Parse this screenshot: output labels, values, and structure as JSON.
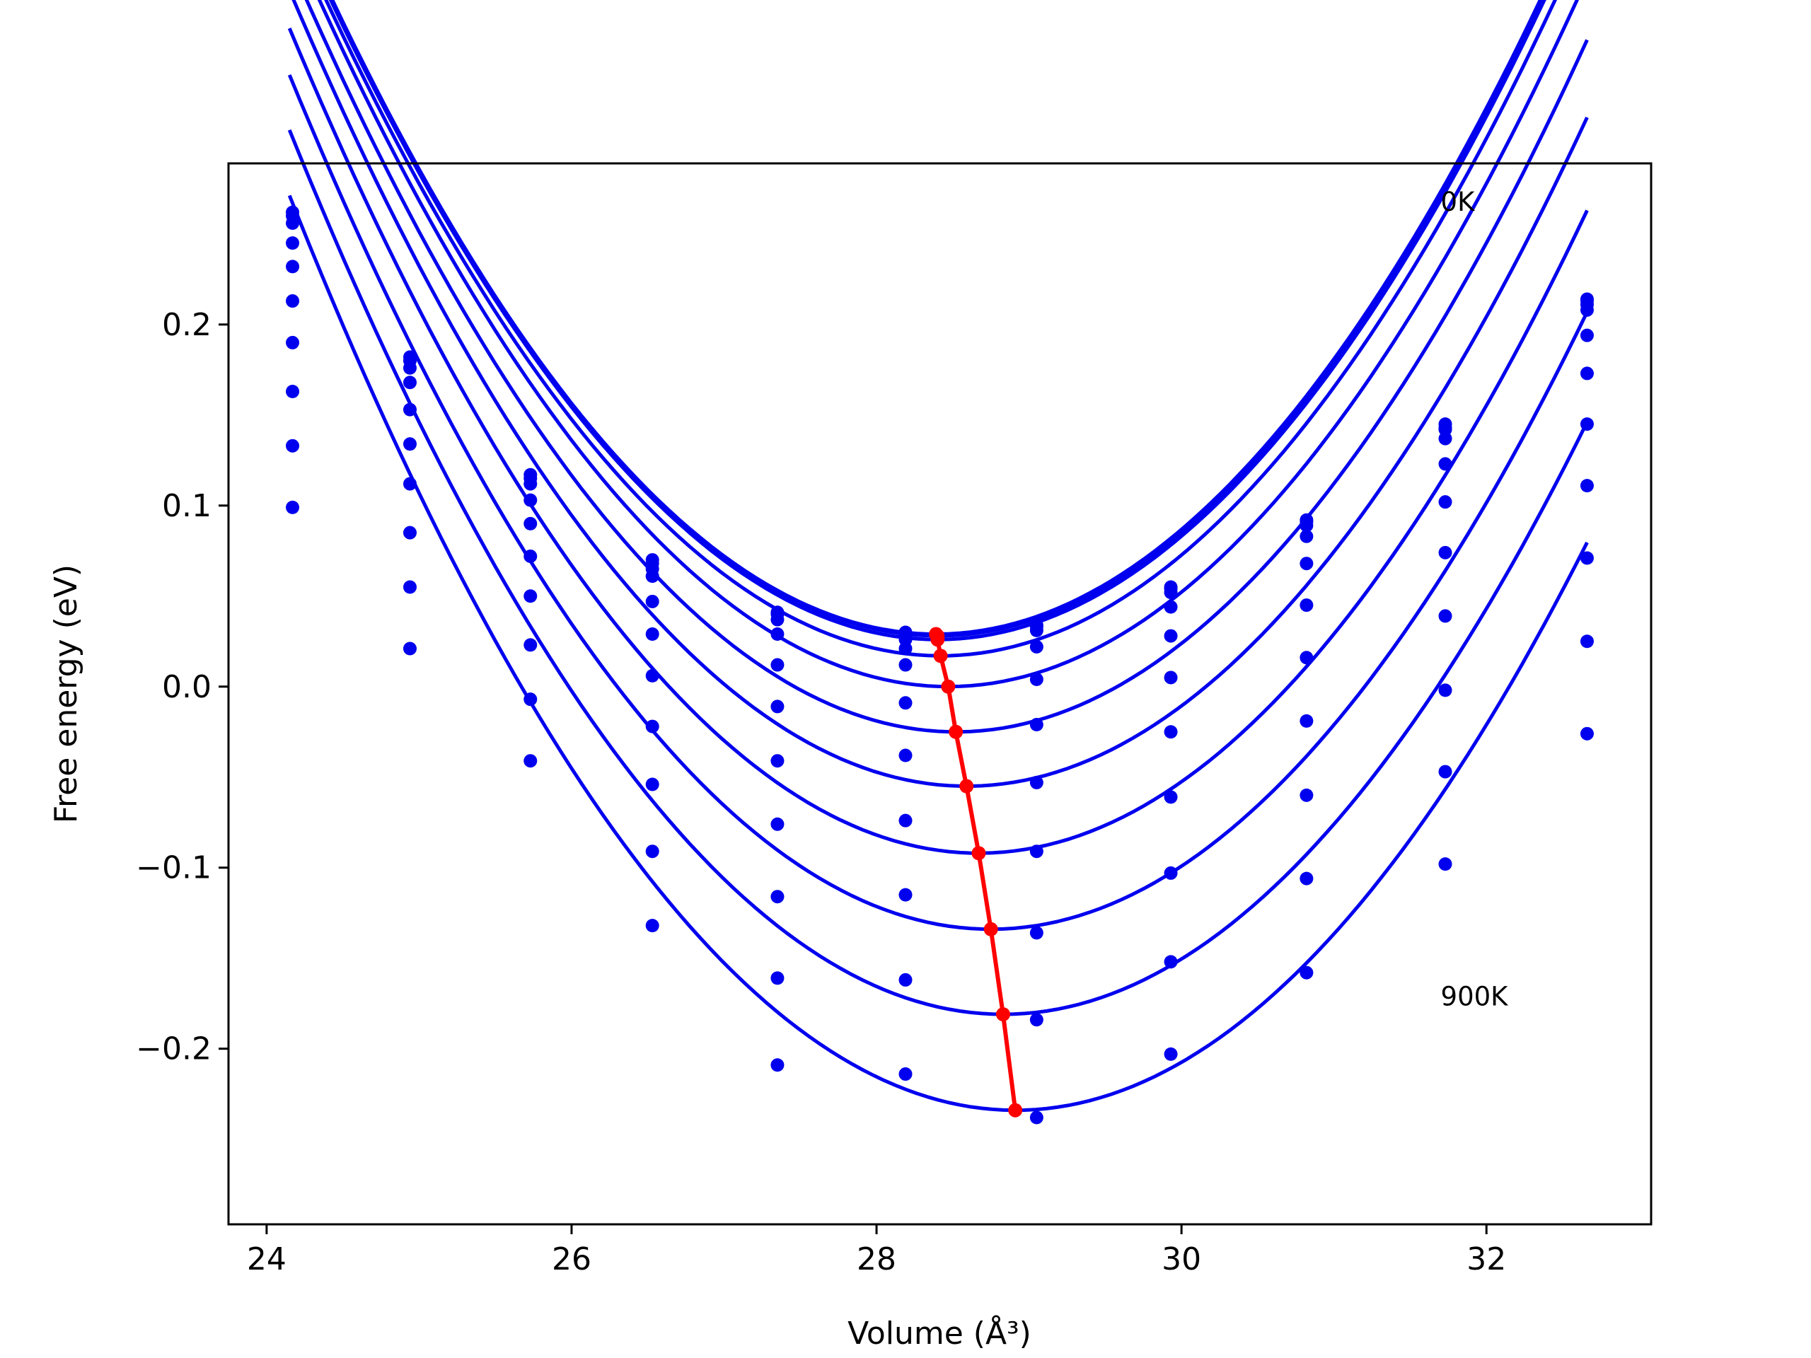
{
  "chart_data": {
    "type": "line",
    "xlabel": "Volume (Å³)",
    "ylabel": "Free energy (eV)",
    "xlim": [
      23.75,
      33.08
    ],
    "ylim": [
      -0.297,
      0.289
    ],
    "x_ticks": [
      {
        "value": 24,
        "label": "24"
      },
      {
        "value": 26,
        "label": "26"
      },
      {
        "value": 28,
        "label": "28"
      },
      {
        "value": 30,
        "label": "30"
      },
      {
        "value": 32,
        "label": "32"
      }
    ],
    "y_ticks": [
      {
        "value": -0.2,
        "label": "−0.2"
      },
      {
        "value": -0.1,
        "label": "−0.1"
      },
      {
        "value": 0.0,
        "label": "0.0"
      },
      {
        "value": 0.1,
        "label": "0.1"
      },
      {
        "value": 0.2,
        "label": "0.2"
      }
    ],
    "grid": false,
    "legend": "none",
    "annotations": [
      {
        "text": "0K",
        "x": 31.7,
        "y": 0.268
      },
      {
        "text": "900K",
        "x": 31.7,
        "y": -0.171
      }
    ],
    "colors": {
      "fit": "#0000ee",
      "points": "#0000ee",
      "minima": "#ff0000"
    },
    "x_points": [
      24.17,
      24.94,
      25.73,
      26.53,
      27.35,
      28.19,
      29.05,
      29.93,
      30.82,
      31.73,
      32.66
    ],
    "fit_x_range": [
      24.15,
      32.66
    ],
    "series": [
      {
        "min_x": 28.39,
        "min_y": 0.029,
        "a": 0.0223,
        "points": [
          0.262,
          0.182,
          0.117,
          0.07,
          0.041,
          0.03,
          0.034,
          0.055,
          0.092,
          0.145,
          0.214
        ]
      },
      {
        "min_x": 28.4,
        "min_y": 0.028,
        "a": 0.0223,
        "points": [
          0.26,
          0.18,
          0.115,
          0.068,
          0.04,
          0.028,
          0.033,
          0.054,
          0.091,
          0.143,
          0.213
        ]
      },
      {
        "min_x": 28.4,
        "min_y": 0.026,
        "a": 0.0223,
        "points": [
          0.256,
          0.176,
          0.112,
          0.065,
          0.037,
          0.026,
          0.031,
          0.052,
          0.089,
          0.142,
          0.211
        ]
      },
      {
        "min_x": 28.42,
        "min_y": 0.017,
        "a": 0.0223,
        "points": [
          0.245,
          0.168,
          0.103,
          0.061,
          0.029,
          0.021,
          0.022,
          0.044,
          0.083,
          0.137,
          0.208
        ]
      },
      {
        "min_x": 28.47,
        "min_y": 0.0,
        "a": 0.0223,
        "points": [
          0.232,
          0.153,
          0.09,
          0.047,
          0.012,
          0.012,
          0.004,
          0.028,
          0.068,
          0.123,
          0.194
        ]
      },
      {
        "min_x": 28.52,
        "min_y": -0.025,
        "a": 0.0223,
        "points": [
          0.213,
          0.134,
          0.072,
          0.029,
          -0.011,
          -0.009,
          -0.021,
          0.005,
          0.045,
          0.102,
          0.173
        ]
      },
      {
        "min_x": 28.59,
        "min_y": -0.055,
        "a": 0.0223,
        "points": [
          0.19,
          0.112,
          0.05,
          0.006,
          -0.041,
          -0.038,
          -0.053,
          -0.025,
          0.016,
          0.074,
          0.145
        ]
      },
      {
        "min_x": 28.67,
        "min_y": -0.092,
        "a": 0.0223,
        "points": [
          0.163,
          0.085,
          0.023,
          -0.022,
          -0.076,
          -0.074,
          -0.091,
          -0.061,
          -0.019,
          0.039,
          0.111
        ]
      },
      {
        "min_x": 28.75,
        "min_y": -0.134,
        "a": 0.0223,
        "points": [
          0.133,
          0.055,
          -0.007,
          -0.054,
          -0.116,
          -0.115,
          -0.136,
          -0.103,
          -0.06,
          -0.002,
          0.071
        ]
      },
      {
        "min_x": 28.83,
        "min_y": -0.181,
        "a": 0.0223,
        "points": [
          0.099,
          0.021,
          -0.041,
          -0.091,
          -0.161,
          -0.162,
          -0.184,
          -0.152,
          -0.106,
          -0.047,
          0.025
        ]
      },
      {
        "min_x": 28.91,
        "min_y": -0.234,
        "a": 0.0223,
        "points": [
          null,
          null,
          null,
          -0.132,
          -0.209,
          -0.214,
          -0.238,
          -0.203,
          -0.158,
          -0.098,
          -0.026
        ]
      }
    ]
  }
}
